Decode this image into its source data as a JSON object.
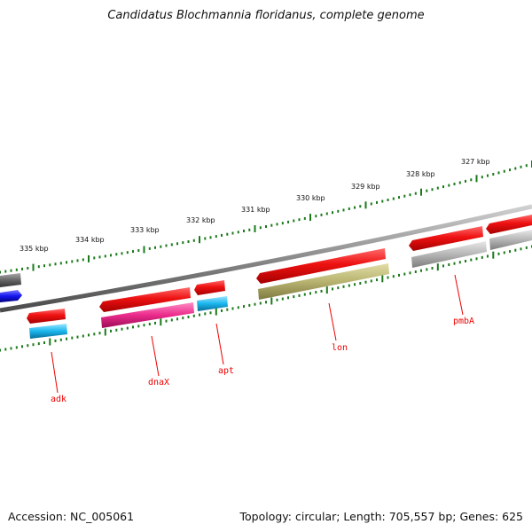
{
  "title": "Candidatus Blochmannia floridanus, complete genome",
  "footer": {
    "accession": "Accession: NC_005061",
    "summary": "Topology: circular; Length: 705,557 bp; Genes: 625"
  },
  "colors": {
    "backbone": "#8a8a8a",
    "tick": "#1a7a1a",
    "forward_gene": "#ee1111",
    "label": "#ee0000",
    "cyan": "#19b6ee",
    "magenta": "#ea2a8a",
    "olive": "#b8b370",
    "gray": "#b5b5b5",
    "dark_gray": "#666666",
    "blue": "#1515ee"
  },
  "tick_labels": [
    "335 kbp",
    "334 kbp",
    "333 kbp",
    "332 kbp",
    "331 kbp",
    "330 kbp",
    "329 kbp",
    "328 kbp",
    "327 kbp"
  ],
  "gene_labels": [
    "adk",
    "dnaX",
    "apt",
    "lon",
    "pmbA"
  ]
}
